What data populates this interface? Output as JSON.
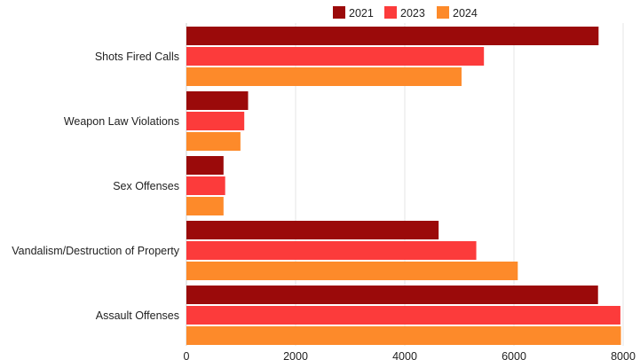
{
  "chart_data": {
    "type": "bar",
    "orientation": "horizontal",
    "title": "",
    "xlabel": "",
    "ylabel": "",
    "categories": [
      "Shots Fired Calls",
      "Weapon Law Violations",
      "Sex Offenses",
      "Vandalism/Destruction of Property",
      "Assault Offenses"
    ],
    "series": [
      {
        "name": "2021",
        "color": "#9b0a0a",
        "values": [
          7550,
          1130,
          680,
          4620,
          7540
        ]
      },
      {
        "name": "2023",
        "color": "#fc3b3b",
        "values": [
          5450,
          1060,
          710,
          5310,
          7950
        ]
      },
      {
        "name": "2024",
        "color": "#fd8a2a",
        "values": [
          5040,
          990,
          680,
          6070,
          7960
        ]
      }
    ],
    "xlim": [
      0,
      8000
    ],
    "xticks": [
      "0",
      "2000",
      "4000",
      "6000",
      "8000"
    ],
    "grid": true,
    "legend_position": "top"
  }
}
